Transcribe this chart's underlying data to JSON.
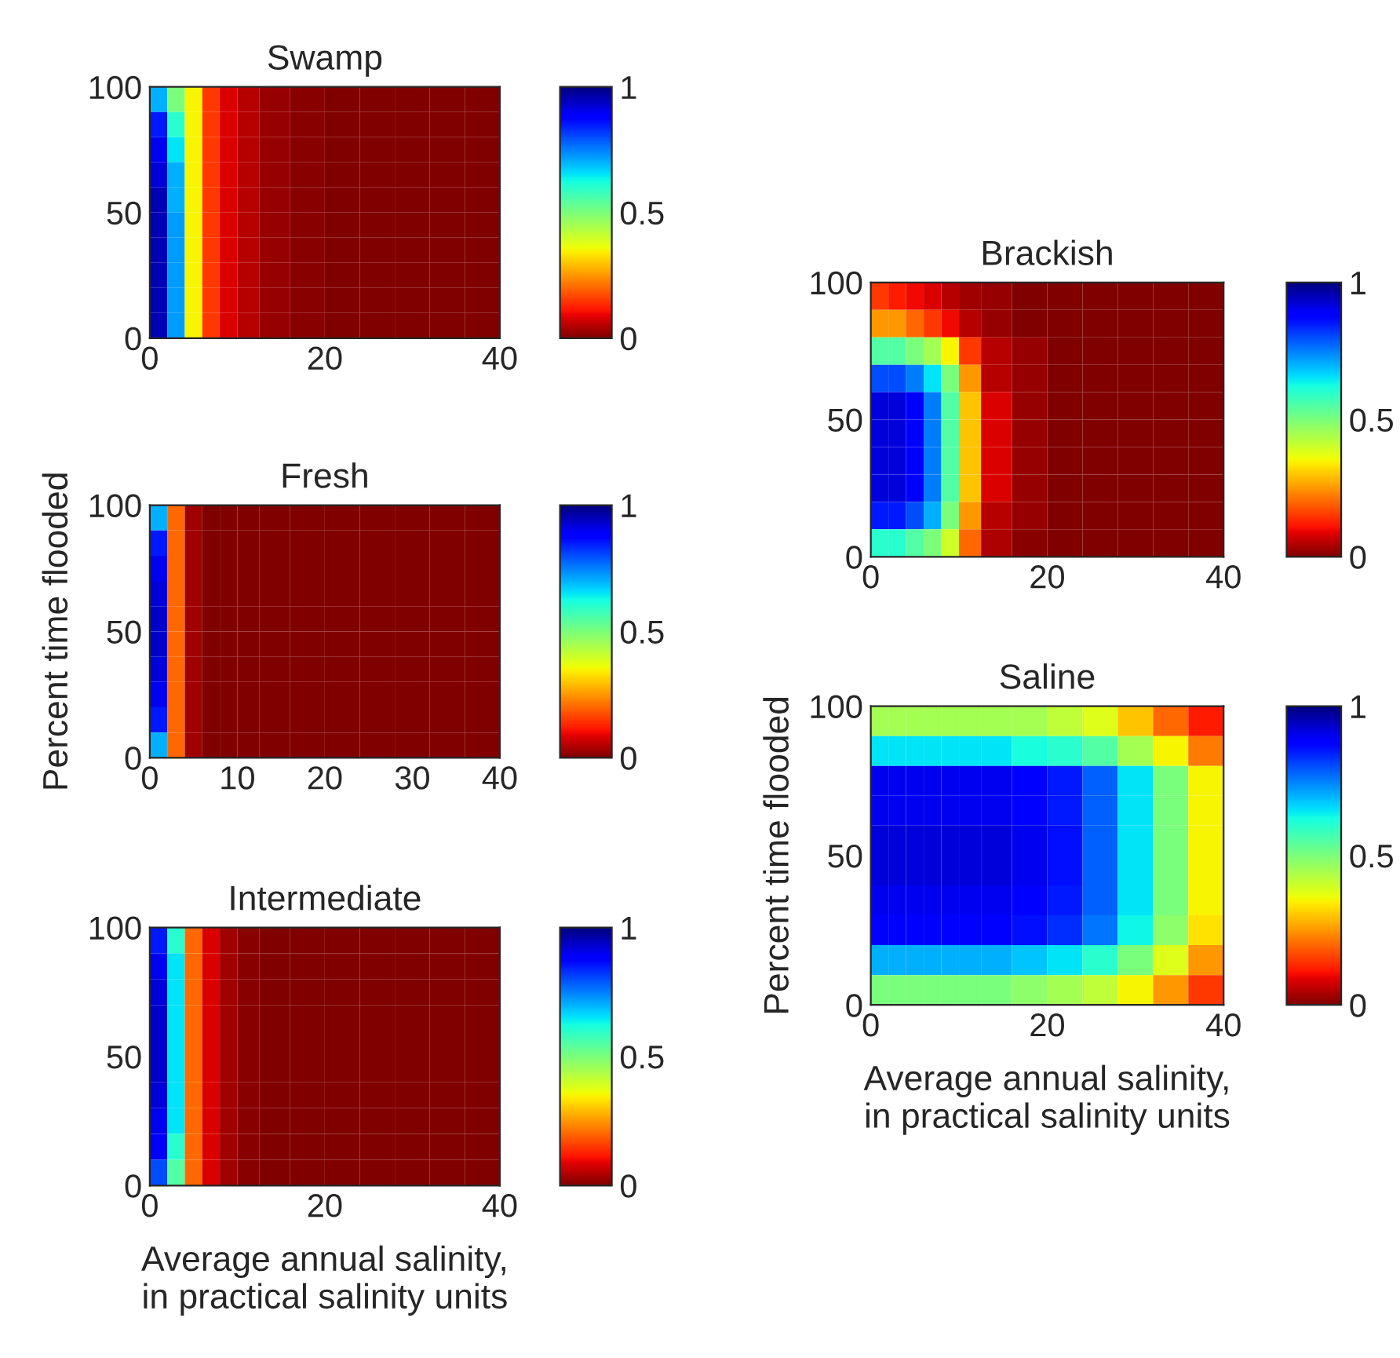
{
  "chart_data": [
    {
      "type": "heatmap",
      "title": "Swamp",
      "x": [
        1,
        3,
        5,
        7,
        9,
        11,
        14,
        18,
        22,
        26,
        30,
        34,
        38
      ],
      "y": [
        95,
        85,
        75,
        65,
        55,
        45,
        35,
        25,
        15,
        5
      ],
      "xlim": [
        0,
        40
      ],
      "ylim": [
        0,
        100
      ],
      "xticks": [
        0,
        20,
        40
      ],
      "yticks": [
        0,
        50,
        100
      ],
      "clim": [
        0,
        1
      ],
      "cticks": [
        0,
        0.5,
        1
      ],
      "cells": [
        [
          0.7,
          0.5,
          0.35,
          0.15,
          0.08,
          0.05,
          0.02,
          0.01,
          0,
          0,
          0,
          0,
          0
        ],
        [
          0.85,
          0.6,
          0.35,
          0.15,
          0.08,
          0.05,
          0.02,
          0.01,
          0,
          0,
          0,
          0,
          0
        ],
        [
          0.9,
          0.65,
          0.35,
          0.15,
          0.08,
          0.05,
          0.02,
          0.01,
          0,
          0,
          0,
          0,
          0
        ],
        [
          0.92,
          0.7,
          0.35,
          0.15,
          0.08,
          0.05,
          0.02,
          0.01,
          0,
          0,
          0,
          0,
          0
        ],
        [
          0.95,
          0.7,
          0.35,
          0.15,
          0.08,
          0.05,
          0.02,
          0.01,
          0,
          0,
          0,
          0,
          0
        ],
        [
          0.95,
          0.72,
          0.35,
          0.15,
          0.08,
          0.05,
          0.02,
          0.01,
          0,
          0,
          0,
          0,
          0
        ],
        [
          0.95,
          0.72,
          0.35,
          0.15,
          0.08,
          0.05,
          0.02,
          0.01,
          0,
          0,
          0,
          0,
          0
        ],
        [
          0.95,
          0.72,
          0.35,
          0.15,
          0.08,
          0.05,
          0.02,
          0.01,
          0,
          0,
          0,
          0,
          0
        ],
        [
          0.95,
          0.72,
          0.35,
          0.15,
          0.08,
          0.05,
          0.02,
          0.01,
          0,
          0,
          0,
          0,
          0
        ],
        [
          0.95,
          0.72,
          0.35,
          0.15,
          0.08,
          0.05,
          0.02,
          0.01,
          0,
          0,
          0,
          0,
          0
        ]
      ]
    },
    {
      "type": "heatmap",
      "title": "Brackish",
      "x": [
        1,
        3,
        5,
        7,
        9,
        11,
        14,
        18,
        22,
        26,
        30,
        34,
        38
      ],
      "y": [
        95,
        85,
        75,
        65,
        55,
        45,
        35,
        25,
        15,
        5
      ],
      "xlim": [
        0,
        40
      ],
      "ylim": [
        0,
        100
      ],
      "xticks": [
        0,
        20,
        40
      ],
      "yticks": [
        0,
        50,
        100
      ],
      "clim": [
        0,
        1
      ],
      "cticks": [
        0,
        0.5,
        1
      ],
      "cells": [
        [
          0.15,
          0.12,
          0.1,
          0.08,
          0.05,
          0.03,
          0.02,
          0,
          0,
          0,
          0,
          0,
          0
        ],
        [
          0.25,
          0.25,
          0.2,
          0.15,
          0.1,
          0.05,
          0.02,
          0,
          0,
          0,
          0,
          0,
          0
        ],
        [
          0.55,
          0.55,
          0.5,
          0.45,
          0.35,
          0.15,
          0.05,
          0.02,
          0,
          0,
          0,
          0,
          0
        ],
        [
          0.8,
          0.8,
          0.75,
          0.65,
          0.5,
          0.25,
          0.05,
          0.02,
          0,
          0,
          0,
          0,
          0
        ],
        [
          0.92,
          0.92,
          0.88,
          0.75,
          0.55,
          0.3,
          0.08,
          0.02,
          0,
          0,
          0,
          0,
          0
        ],
        [
          0.92,
          0.92,
          0.88,
          0.75,
          0.55,
          0.3,
          0.08,
          0.02,
          0,
          0,
          0,
          0,
          0
        ],
        [
          0.92,
          0.92,
          0.88,
          0.75,
          0.55,
          0.3,
          0.08,
          0.02,
          0,
          0,
          0,
          0,
          0
        ],
        [
          0.92,
          0.92,
          0.88,
          0.75,
          0.55,
          0.3,
          0.08,
          0.02,
          0,
          0,
          0,
          0,
          0
        ],
        [
          0.85,
          0.85,
          0.8,
          0.7,
          0.5,
          0.25,
          0.05,
          0.02,
          0,
          0,
          0,
          0,
          0
        ],
        [
          0.6,
          0.6,
          0.55,
          0.5,
          0.4,
          0.2,
          0.04,
          0.01,
          0,
          0,
          0,
          0,
          0
        ]
      ]
    },
    {
      "type": "heatmap",
      "title": "Fresh",
      "ylabel": "Percent time flooded",
      "x": [
        1,
        3,
        5,
        7,
        9,
        11,
        14,
        18,
        22,
        26,
        30,
        34,
        38
      ],
      "y": [
        95,
        85,
        75,
        65,
        55,
        45,
        35,
        25,
        15,
        5
      ],
      "xlim": [
        0,
        40
      ],
      "ylim": [
        0,
        100
      ],
      "xticks": [
        0,
        10,
        20,
        30,
        40
      ],
      "yticks": [
        0,
        50,
        100
      ],
      "clim": [
        0,
        1
      ],
      "cticks": [
        0,
        0.5,
        1
      ],
      "cells": [
        [
          0.7,
          0.2,
          0.03,
          0,
          0,
          0,
          0,
          0,
          0,
          0,
          0,
          0,
          0
        ],
        [
          0.85,
          0.2,
          0.03,
          0,
          0,
          0,
          0,
          0,
          0,
          0,
          0,
          0,
          0
        ],
        [
          0.9,
          0.2,
          0.03,
          0,
          0,
          0,
          0,
          0,
          0,
          0,
          0,
          0,
          0
        ],
        [
          0.92,
          0.2,
          0.03,
          0,
          0,
          0,
          0,
          0,
          0,
          0,
          0,
          0,
          0
        ],
        [
          0.93,
          0.2,
          0.03,
          0,
          0,
          0,
          0,
          0,
          0,
          0,
          0,
          0,
          0
        ],
        [
          0.93,
          0.2,
          0.03,
          0,
          0,
          0,
          0,
          0,
          0,
          0,
          0,
          0,
          0
        ],
        [
          0.92,
          0.2,
          0.03,
          0,
          0,
          0,
          0,
          0,
          0,
          0,
          0,
          0,
          0
        ],
        [
          0.9,
          0.2,
          0.03,
          0,
          0,
          0,
          0,
          0,
          0,
          0,
          0,
          0,
          0
        ],
        [
          0.85,
          0.2,
          0.03,
          0,
          0,
          0,
          0,
          0,
          0,
          0,
          0,
          0,
          0
        ],
        [
          0.7,
          0.2,
          0.03,
          0,
          0,
          0,
          0,
          0,
          0,
          0,
          0,
          0,
          0
        ]
      ]
    },
    {
      "type": "heatmap",
      "title": "Saline",
      "xlabel": "Average annual salinity,\nin practical salinity units",
      "ylabel": "Percent time flooded",
      "x": [
        1,
        3,
        5,
        7,
        9,
        11,
        14,
        18,
        22,
        26,
        30,
        34,
        38
      ],
      "y": [
        95,
        85,
        75,
        65,
        55,
        45,
        35,
        25,
        15,
        5
      ],
      "xlim": [
        0,
        40
      ],
      "ylim": [
        0,
        100
      ],
      "xticks": [
        0,
        20,
        40
      ],
      "yticks": [
        0,
        50,
        100
      ],
      "clim": [
        0,
        1
      ],
      "cticks": [
        0,
        0.5,
        1
      ],
      "cells": [
        [
          0.45,
          0.45,
          0.45,
          0.45,
          0.45,
          0.45,
          0.45,
          0.45,
          0.42,
          0.38,
          0.3,
          0.2,
          0.12
        ],
        [
          0.65,
          0.65,
          0.65,
          0.65,
          0.65,
          0.65,
          0.65,
          0.62,
          0.6,
          0.55,
          0.45,
          0.35,
          0.22
        ],
        [
          0.9,
          0.9,
          0.9,
          0.9,
          0.9,
          0.9,
          0.9,
          0.88,
          0.85,
          0.78,
          0.65,
          0.5,
          0.35
        ],
        [
          0.9,
          0.9,
          0.9,
          0.9,
          0.9,
          0.9,
          0.9,
          0.88,
          0.85,
          0.78,
          0.65,
          0.5,
          0.35
        ],
        [
          0.92,
          0.92,
          0.92,
          0.92,
          0.92,
          0.92,
          0.92,
          0.9,
          0.86,
          0.78,
          0.65,
          0.5,
          0.35
        ],
        [
          0.92,
          0.92,
          0.92,
          0.92,
          0.92,
          0.92,
          0.92,
          0.9,
          0.86,
          0.78,
          0.65,
          0.5,
          0.35
        ],
        [
          0.9,
          0.9,
          0.9,
          0.9,
          0.9,
          0.9,
          0.9,
          0.88,
          0.85,
          0.78,
          0.65,
          0.5,
          0.35
        ],
        [
          0.88,
          0.88,
          0.88,
          0.88,
          0.88,
          0.88,
          0.88,
          0.86,
          0.83,
          0.76,
          0.63,
          0.48,
          0.33
        ],
        [
          0.7,
          0.7,
          0.7,
          0.7,
          0.7,
          0.7,
          0.7,
          0.68,
          0.65,
          0.6,
          0.5,
          0.38,
          0.25
        ],
        [
          0.5,
          0.5,
          0.5,
          0.5,
          0.5,
          0.5,
          0.5,
          0.48,
          0.45,
          0.42,
          0.35,
          0.25,
          0.15
        ]
      ]
    },
    {
      "type": "heatmap",
      "title": "Intermediate",
      "xlabel": "Average annual salinity,\nin practical salinity units",
      "x": [
        1,
        3,
        5,
        7,
        9,
        11,
        14,
        18,
        22,
        26,
        30,
        34,
        38
      ],
      "y": [
        95,
        85,
        75,
        65,
        55,
        45,
        35,
        25,
        15,
        5
      ],
      "xlim": [
        0,
        40
      ],
      "ylim": [
        0,
        100
      ],
      "xticks": [
        0,
        20,
        40
      ],
      "yticks": [
        0,
        50,
        100
      ],
      "clim": [
        0,
        1
      ],
      "cticks": [
        0,
        0.5,
        1
      ],
      "cells": [
        [
          0.85,
          0.6,
          0.2,
          0.08,
          0.03,
          0.01,
          0,
          0,
          0,
          0,
          0,
          0,
          0
        ],
        [
          0.9,
          0.65,
          0.2,
          0.08,
          0.03,
          0.01,
          0,
          0,
          0,
          0,
          0,
          0,
          0
        ],
        [
          0.92,
          0.65,
          0.2,
          0.08,
          0.03,
          0.01,
          0,
          0,
          0,
          0,
          0,
          0,
          0
        ],
        [
          0.93,
          0.65,
          0.2,
          0.08,
          0.03,
          0.01,
          0,
          0,
          0,
          0,
          0,
          0,
          0
        ],
        [
          0.93,
          0.65,
          0.2,
          0.08,
          0.03,
          0.01,
          0,
          0,
          0,
          0,
          0,
          0,
          0
        ],
        [
          0.93,
          0.65,
          0.2,
          0.08,
          0.03,
          0.01,
          0,
          0,
          0,
          0,
          0,
          0,
          0
        ],
        [
          0.92,
          0.65,
          0.2,
          0.08,
          0.03,
          0.01,
          0,
          0,
          0,
          0,
          0,
          0,
          0
        ],
        [
          0.9,
          0.65,
          0.2,
          0.08,
          0.03,
          0.01,
          0,
          0,
          0,
          0,
          0,
          0,
          0
        ],
        [
          0.88,
          0.6,
          0.2,
          0.08,
          0.03,
          0.01,
          0,
          0,
          0,
          0,
          0,
          0,
          0
        ],
        [
          0.8,
          0.55,
          0.2,
          0.08,
          0.03,
          0.01,
          0,
          0,
          0,
          0,
          0,
          0,
          0
        ]
      ]
    }
  ]
}
